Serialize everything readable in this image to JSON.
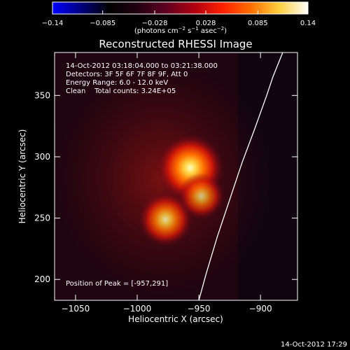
{
  "colorbar": {
    "tick_labels": [
      "−0.14",
      "−0.085",
      "−0.028",
      "0.028",
      "0.085",
      "0.14"
    ],
    "tick_values": [
      -0.14,
      -0.085,
      -0.028,
      0.028,
      0.085,
      0.14
    ],
    "range": [
      -0.14,
      0.14
    ],
    "units_main": "(photons cm",
    "units_exp1": "−2",
    "units_mid1": " s",
    "units_exp2": "−1",
    "units_mid2": " asec",
    "units_exp3": "−2",
    "units_end": ")",
    "colormap": [
      "#0000ff",
      "#000080",
      "#000000",
      "#200010",
      "#600020",
      "#b00010",
      "#ff2000",
      "#ff7000",
      "#ffd040",
      "#ffffff"
    ]
  },
  "chart_data": {
    "type": "heatmap",
    "title": "Reconstructed RHESSI Image",
    "xlabel": "Heliocentric X (arcsec)",
    "ylabel": "Heliocentric Y (arcsec)",
    "xlim": [
      -1067,
      -870
    ],
    "ylim": [
      183,
      385
    ],
    "x_ticks": [
      -1050,
      -1000,
      -950,
      -900
    ],
    "x_tick_labels": [
      "−1050",
      "−1000",
      "−950",
      "−900"
    ],
    "y_ticks": [
      200,
      250,
      300,
      350
    ],
    "y_tick_labels": [
      "200",
      "250",
      "300",
      "350"
    ],
    "sources": [
      {
        "x": -957,
        "y": 291,
        "intensity": 0.14
      },
      {
        "x": -977,
        "y": 249,
        "intensity": 0.09
      },
      {
        "x": -948,
        "y": 268,
        "intensity": 0.06
      }
    ],
    "limb_x": [
      -950,
      -944,
      -935,
      -925,
      -915,
      -905,
      -895,
      -890,
      -882
    ],
    "limb_y": [
      183,
      205,
      235,
      265,
      295,
      322,
      350,
      365,
      385
    ],
    "info_lines": [
      "14-Oct-2012 03:18:04.000 to 03:21:38.000",
      "Detectors: 3F 5F 6F 7F 8F 9F, Att 0",
      "Energy Range: 6.0 - 12.0 keV",
      "Clean    Total counts: 3.24E+05"
    ],
    "peak_label": "Position of Peak = [-957,291]"
  },
  "timestamp": "14-Oct-2012 17:29"
}
